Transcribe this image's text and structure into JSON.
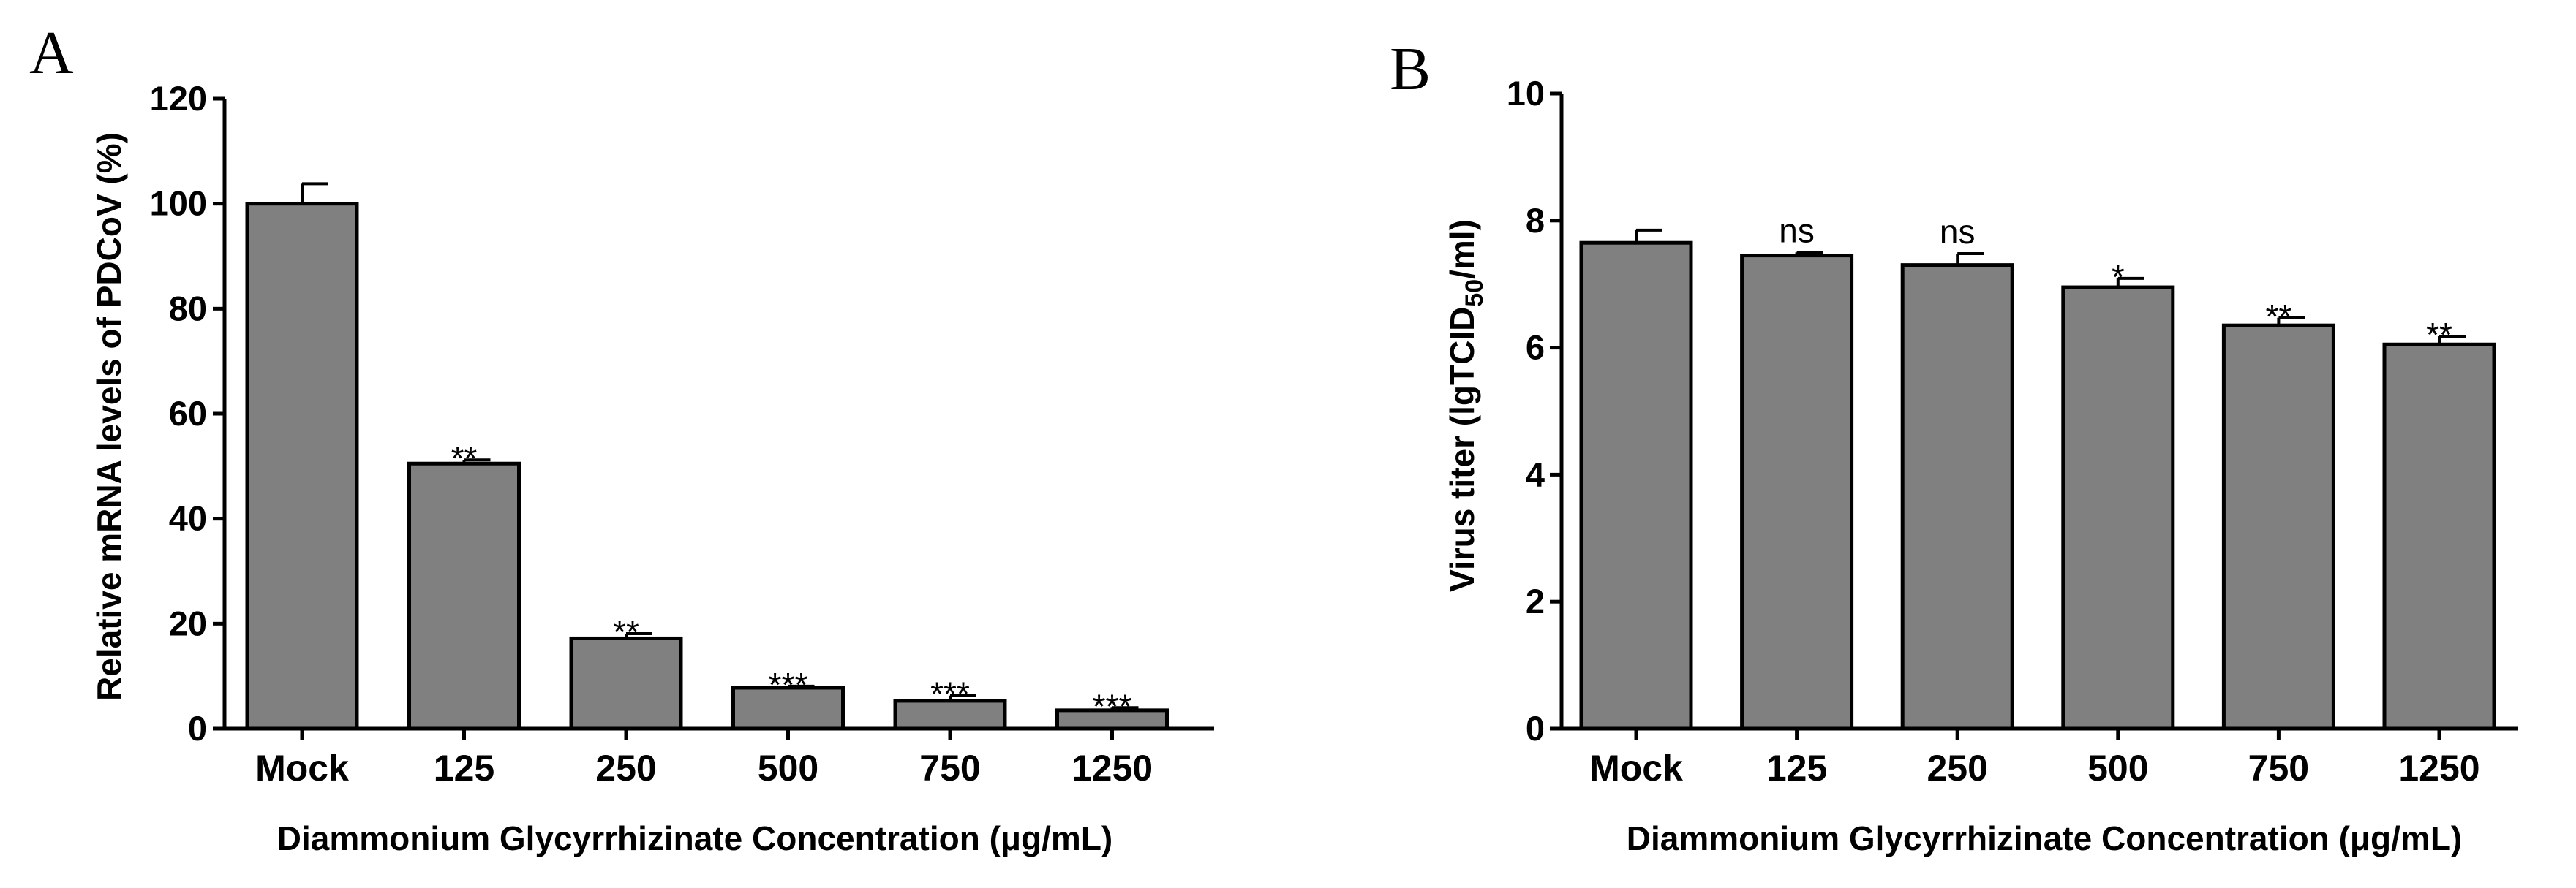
{
  "chart_data": [
    {
      "panel_label": "A",
      "type": "bar",
      "categories": [
        "Mock",
        "125",
        "250",
        "500",
        "750",
        "1250"
      ],
      "values": [
        100,
        50.5,
        17.2,
        7.8,
        5.3,
        3.5
      ],
      "errors": [
        3.8,
        0.7,
        0.9,
        0.3,
        1.0,
        0.5
      ],
      "significance": [
        "",
        "**",
        "**",
        "***",
        "***",
        "***"
      ],
      "ylabel": "Relative mRNA levels of PDCoV (%)",
      "xlabel": "Diammonium Glycyrrhizinate Concentration (μg/mL)",
      "ylim": [
        0,
        120
      ],
      "yticks": [
        0,
        20,
        40,
        60,
        80,
        100,
        120
      ]
    },
    {
      "panel_label": "B",
      "type": "bar",
      "categories": [
        "Mock",
        "125",
        "250",
        "500",
        "750",
        "1250"
      ],
      "values": [
        7.65,
        7.45,
        7.3,
        6.95,
        6.35,
        6.05
      ],
      "errors": [
        0.2,
        0.05,
        0.18,
        0.14,
        0.12,
        0.13
      ],
      "significance": [
        "",
        "ns",
        "ns",
        "*",
        "**",
        "**"
      ],
      "ylabel_parts": [
        "Virus titer (lgTCID",
        "50",
        "/ml)"
      ],
      "xlabel": "Diammonium Glycyrrhizinate Concentration (μg/mL)",
      "ylim": [
        0,
        10
      ],
      "yticks": [
        0,
        2,
        4,
        6,
        8,
        10
      ]
    }
  ]
}
